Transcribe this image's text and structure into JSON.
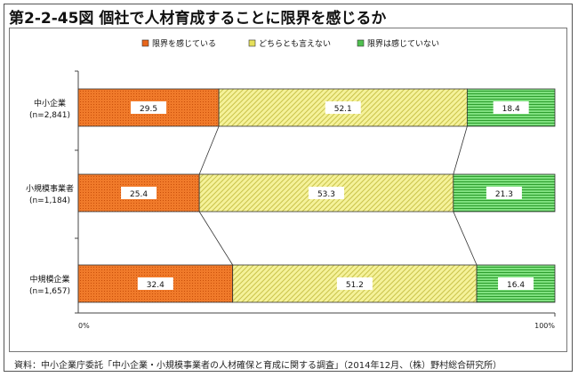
{
  "figure": {
    "title": "第2-2-45図 個社で人材育成することに限界を感じるか",
    "source": "資料：中小企業庁委託「中小企業・小規模事業者の人材確保と育成に関する調査」（2014年12月、（株）野村総合研究所）"
  },
  "colors": {
    "limit": "#f07a2a",
    "neither": "#f2f08a",
    "nolimit": "#6fd86f"
  },
  "chart_data": {
    "type": "bar",
    "orientation": "horizontal",
    "stacked": "percent",
    "categories": [
      {
        "name": "中小企業",
        "n": "(n=2,841)"
      },
      {
        "name": "小規模事業者",
        "n": "(n=1,184)"
      },
      {
        "name": "中規模企業",
        "n": "(n=1,657)"
      }
    ],
    "series": [
      {
        "name": "限界を感じている",
        "values": [
          29.5,
          25.4,
          32.4
        ]
      },
      {
        "name": "どちらとも言えない",
        "values": [
          52.1,
          53.3,
          51.2
        ]
      },
      {
        "name": "限界は感じていない",
        "values": [
          18.4,
          21.3,
          16.4
        ]
      }
    ],
    "xlim": [
      0,
      100
    ],
    "xticks": [
      "0%",
      "100%"
    ],
    "legend": "top",
    "grid": false,
    "connector_lines": true
  }
}
